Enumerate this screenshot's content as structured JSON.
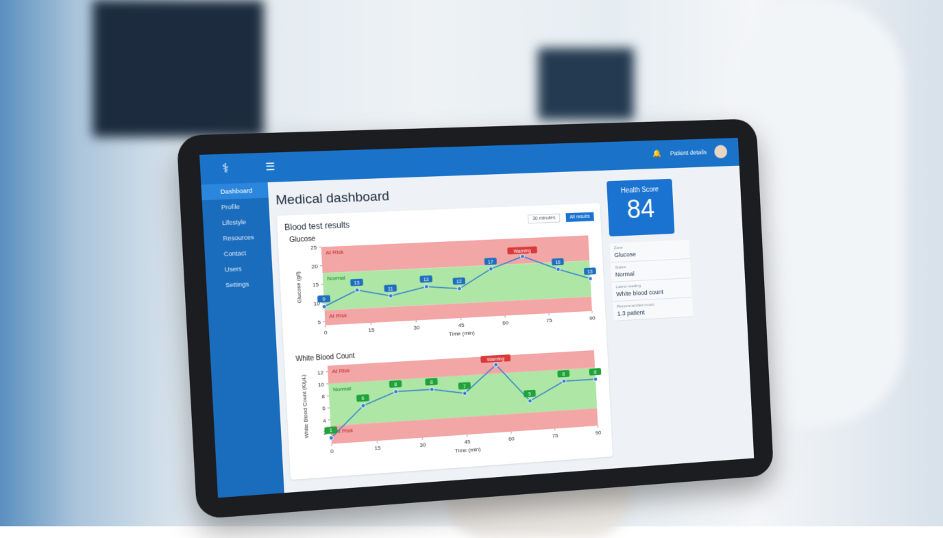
{
  "header": {
    "user": "Patient details"
  },
  "sidebar": {
    "items": [
      "Dashboard",
      "Profile",
      "Lifestyle",
      "Resources",
      "Contact",
      "Users",
      "Settings"
    ]
  },
  "page_title": "Medical dashboard",
  "controls": {
    "range": "30 minutes",
    "filter": "All results"
  },
  "panel_title": "Blood test results",
  "charts": [
    {
      "type": "line",
      "title": "Glucose",
      "ylabel": "Glucose (g/l)",
      "xlabel": "Time (min)",
      "x": [
        0,
        11,
        22,
        34,
        45,
        56,
        67,
        79,
        90
      ],
      "values": [
        9,
        13,
        11,
        13,
        12,
        17,
        20,
        16,
        13
      ],
      "color": "#2f7fd0",
      "label_color": "#1f6fbf",
      "xlim": [
        0,
        90
      ],
      "xticks": [
        0,
        15,
        30,
        45,
        60,
        75,
        90
      ],
      "ylim": [
        4,
        25
      ],
      "yticks": [
        5,
        10,
        15,
        20,
        25
      ],
      "bands": [
        {
          "label": "At Risk",
          "from": 18,
          "to": 25,
          "color": "#f3a6a6"
        },
        {
          "label": "Normal",
          "from": 8,
          "to": 18,
          "color": "#aee6a6"
        },
        {
          "label": "At Risk",
          "from": 4,
          "to": 8,
          "color": "#f3a6a6"
        }
      ],
      "annotation": "Warning"
    },
    {
      "type": "line",
      "title": "White Blood Count",
      "ylabel": "White Blood Count (K/µL)",
      "xlabel": "Time (min)",
      "x": [
        0,
        11,
        22,
        34,
        45,
        56,
        67,
        79,
        90
      ],
      "values": [
        1,
        6,
        8,
        8,
        7,
        11.5,
        5,
        8,
        8
      ],
      "color": "#2f7fd0",
      "label_color": "#1fa33a",
      "xlim": [
        0,
        90
      ],
      "xticks": [
        0,
        15,
        30,
        45,
        60,
        75,
        90
      ],
      "ylim": [
        0,
        13
      ],
      "yticks": [
        2,
        4,
        6,
        8,
        10,
        12
      ],
      "bands": [
        {
          "label": "At Risk",
          "from": 10,
          "to": 13,
          "color": "#f3a6a6"
        },
        {
          "label": "Normal",
          "from": 3,
          "to": 10,
          "color": "#aee6a6"
        },
        {
          "label": "At Risk",
          "from": 0,
          "to": 3,
          "color": "#f3a6a6"
        }
      ],
      "annotation": "Warning"
    }
  ],
  "health_score": {
    "title": "Health Score",
    "value": 84
  },
  "summary": [
    {
      "label": "Zone",
      "value": "Glucose"
    },
    {
      "label": "Status",
      "value": "Normal"
    },
    {
      "label": "Latest reading",
      "value": "White blood count"
    },
    {
      "label": "Recommended count",
      "value": "1.3 patient"
    }
  ]
}
